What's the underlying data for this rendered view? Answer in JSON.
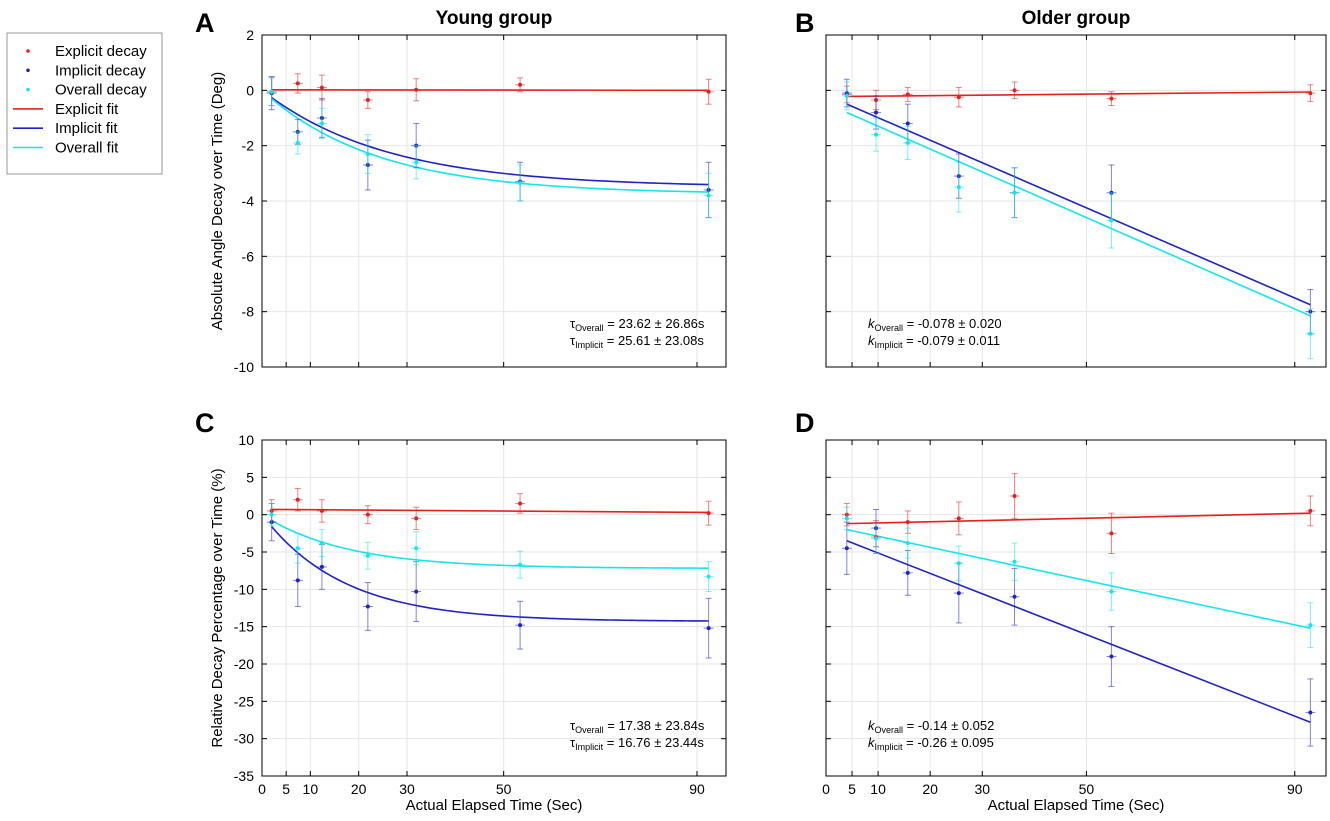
{
  "titles": {
    "young": "Young group",
    "older": "Older group"
  },
  "panel_labels": [
    "A",
    "B",
    "C",
    "D"
  ],
  "xlabel": "Actual Elapsed Time (Sec)",
  "colors": {
    "explicit": "#e8201c",
    "implicit": "#1f23c8",
    "overall": "#14e6ee"
  },
  "legend": [
    {
      "label": "Explicit decay",
      "kind": "dot",
      "series": "explicit"
    },
    {
      "label": "Implicit decay",
      "kind": "dot",
      "series": "implicit"
    },
    {
      "label": "Overall decay",
      "kind": "dot",
      "series": "overall"
    },
    {
      "label": "Explicit fit",
      "kind": "line",
      "series": "explicit"
    },
    {
      "label": "Implicit fit",
      "kind": "line",
      "series": "implicit"
    },
    {
      "label": "Overall fit",
      "kind": "line",
      "series": "overall"
    }
  ],
  "chart_data": [
    {
      "panel": "A",
      "type": "scatter",
      "group": "young",
      "ylabel": "Absolute Angle Decay over Time (Deg)",
      "xlim": [
        0,
        96
      ],
      "ylim": [
        -10,
        2
      ],
      "xticks": [
        0,
        5,
        10,
        20,
        30,
        50,
        90
      ],
      "yticks": [
        -10,
        -8,
        -6,
        -4,
        -2,
        0,
        2
      ],
      "ytick_labels": true,
      "grid": true,
      "series": {
        "explicit": {
          "x": [
            2,
            7.4,
            12.4,
            21.9,
            31.9,
            53.4,
            92.4
          ],
          "y": [
            -0.05,
            0.25,
            0.1,
            -0.35,
            0.02,
            0.2,
            -0.05
          ],
          "err": [
            0.5,
            0.35,
            0.45,
            0.3,
            0.4,
            0.25,
            0.45
          ]
        },
        "implicit": {
          "x": [
            2,
            7.4,
            12.4,
            21.9,
            31.9,
            53.4,
            92.4
          ],
          "y": [
            -0.1,
            -1.5,
            -1.0,
            -2.7,
            -2.0,
            -3.3,
            -3.6
          ],
          "err": [
            0.6,
            0.45,
            0.7,
            0.9,
            0.8,
            0.7,
            1.0
          ]
        },
        "overall": {
          "x": [
            2,
            7.4,
            12.4,
            21.9,
            31.9,
            53.4,
            92.4
          ],
          "y": [
            -0.05,
            -1.9,
            -1.2,
            -2.3,
            -2.6,
            -3.35,
            -3.8
          ],
          "err": [
            0.5,
            0.4,
            0.55,
            0.7,
            0.6,
            0.65,
            0.8
          ]
        }
      },
      "fits": {
        "explicit": {
          "model": "linear",
          "x0": 2,
          "x1": 92.4,
          "y0": 0.02,
          "y1": 0.0
        },
        "implicit": {
          "model": "exp",
          "a": -3.5,
          "tau": 25.61,
          "xs": 2,
          "xe": 92.4
        },
        "overall": {
          "model": "exp",
          "a": -3.75,
          "tau": 23.62,
          "xs": 2,
          "xe": 92.4
        }
      },
      "annotation": [
        {
          "sym": "τ",
          "sym_italic": false,
          "sub": "Overall",
          "text": " = 23.62 ± 26.86s"
        },
        {
          "sym": "τ",
          "sym_italic": false,
          "sub": "Implicit",
          "text": " = 25.61 ± 23.08s"
        }
      ]
    },
    {
      "panel": "B",
      "type": "scatter",
      "group": "older",
      "ylabel": "",
      "xlim": [
        0,
        96
      ],
      "ylim": [
        -10,
        2
      ],
      "xticks": [
        0,
        5,
        10,
        20,
        30,
        50,
        90
      ],
      "yticks": [
        -10,
        -8,
        -6,
        -4,
        -2,
        0,
        2
      ],
      "ytick_labels": false,
      "grid": true,
      "series": {
        "explicit": {
          "x": [
            4,
            9.6,
            15.7,
            25.5,
            36.2,
            54.8,
            93
          ],
          "y": [
            -0.15,
            -0.35,
            -0.15,
            -0.25,
            0.0,
            -0.3,
            -0.1
          ],
          "err": [
            0.3,
            0.35,
            0.25,
            0.35,
            0.3,
            0.25,
            0.3
          ]
        },
        "implicit": {
          "x": [
            4,
            9.6,
            15.7,
            25.5,
            36.2,
            54.8,
            93
          ],
          "y": [
            -0.1,
            -0.8,
            -1.2,
            -3.1,
            -3.7,
            -3.7,
            -8.0
          ],
          "err": [
            0.5,
            0.6,
            0.7,
            0.8,
            0.9,
            1.0,
            0.8
          ]
        },
        "overall": {
          "x": [
            4,
            9.6,
            15.7,
            25.5,
            36.2,
            54.8,
            93
          ],
          "y": [
            -0.2,
            -1.6,
            -1.9,
            -3.5,
            -3.7,
            -4.7,
            -8.8
          ],
          "err": [
            0.5,
            0.6,
            0.6,
            0.9,
            0.9,
            1.0,
            0.9
          ]
        }
      },
      "fits": {
        "explicit": {
          "model": "linear",
          "x0": 4,
          "x1": 93,
          "y0": -0.22,
          "y1": -0.06
        },
        "implicit": {
          "model": "linear",
          "x0": 4,
          "x1": 93,
          "y0": -0.5,
          "y1": -7.75
        },
        "overall": {
          "model": "linear",
          "x0": 4,
          "x1": 93,
          "y0": -0.8,
          "y1": -8.15
        }
      },
      "annotation": [
        {
          "sym": "k",
          "sym_italic": true,
          "sub": "Overall",
          "text": " = -0.078 ± 0.020"
        },
        {
          "sym": "k",
          "sym_italic": true,
          "sub": "Implicit",
          "text": " = -0.079 ± 0.011"
        }
      ]
    },
    {
      "panel": "C",
      "type": "scatter",
      "group": "young",
      "ylabel": "Relative Decay Percentage over Time (%)",
      "xlim": [
        0,
        96
      ],
      "ylim": [
        -35,
        10
      ],
      "xticks": [
        0,
        5,
        10,
        20,
        30,
        50,
        90
      ],
      "yticks": [
        -35,
        -30,
        -25,
        -20,
        -15,
        -10,
        -5,
        0,
        5,
        10
      ],
      "ytick_labels": true,
      "grid": true,
      "series": {
        "explicit": {
          "x": [
            2,
            7.4,
            12.4,
            21.9,
            31.9,
            53.4,
            92.4
          ],
          "y": [
            0.5,
            2.0,
            0.5,
            0.0,
            -0.5,
            1.5,
            0.2
          ],
          "err": [
            1.5,
            1.5,
            1.5,
            1.2,
            1.5,
            1.3,
            1.6
          ]
        },
        "implicit": {
          "x": [
            2,
            7.4,
            12.4,
            21.9,
            31.9,
            53.4,
            92.4
          ],
          "y": [
            -1.0,
            -8.8,
            -7.0,
            -12.3,
            -10.3,
            -14.8,
            -15.2
          ],
          "err": [
            2.5,
            3.5,
            3.0,
            3.2,
            4.0,
            3.2,
            4.0
          ]
        },
        "overall": {
          "x": [
            2,
            7.4,
            12.4,
            21.9,
            31.9,
            53.4,
            92.4
          ],
          "y": [
            0.0,
            -4.5,
            -3.8,
            -5.5,
            -4.5,
            -6.7,
            -8.3
          ],
          "err": [
            1.5,
            2.0,
            1.8,
            1.8,
            2.2,
            1.8,
            2.0
          ]
        }
      },
      "fits": {
        "explicit": {
          "model": "linear",
          "x0": 2,
          "x1": 92.4,
          "y0": 0.7,
          "y1": 0.3
        },
        "implicit": {
          "model": "exp",
          "a": -14.3,
          "tau": 16.76,
          "xs": 2,
          "xe": 92.4
        },
        "overall": {
          "model": "exp",
          "a": -7.2,
          "tau": 17.38,
          "xs": 2,
          "xe": 92.4
        }
      },
      "annotation": [
        {
          "sym": "τ",
          "sym_italic": false,
          "sub": "Overall",
          "text": " = 17.38 ± 23.84s"
        },
        {
          "sym": "τ",
          "sym_italic": false,
          "sub": "Implicit",
          "text": " = 16.76 ± 23.44s"
        }
      ]
    },
    {
      "panel": "D",
      "type": "scatter",
      "group": "older",
      "ylabel": "",
      "xlim": [
        0,
        96
      ],
      "ylim": [
        -35,
        10
      ],
      "xticks": [
        0,
        5,
        10,
        20,
        30,
        50,
        90
      ],
      "yticks": [
        -35,
        -30,
        -25,
        -20,
        -15,
        -10,
        -5,
        0,
        5,
        10
      ],
      "ytick_labels": false,
      "grid": true,
      "series": {
        "explicit": {
          "x": [
            4,
            9.6,
            15.7,
            25.5,
            36.2,
            54.8,
            93
          ],
          "y": [
            0.0,
            -3.0,
            -1.0,
            -0.5,
            2.5,
            -2.5,
            0.5
          ],
          "err": [
            1.5,
            2.2,
            1.5,
            2.2,
            3.0,
            2.7,
            2.0
          ]
        },
        "implicit": {
          "x": [
            4,
            9.6,
            15.7,
            25.5,
            36.2,
            54.8,
            93
          ],
          "y": [
            -4.5,
            -1.8,
            -7.8,
            -10.5,
            -11.0,
            -19.0,
            -26.5
          ],
          "err": [
            3.5,
            2.5,
            3.0,
            4.0,
            3.8,
            4.0,
            4.5
          ]
        },
        "overall": {
          "x": [
            4,
            9.6,
            15.7,
            25.5,
            36.2,
            54.8,
            93
          ],
          "y": [
            -0.5,
            -3.2,
            -3.8,
            -6.5,
            -6.3,
            -10.3,
            -14.8
          ],
          "err": [
            1.5,
            2.0,
            2.0,
            2.3,
            2.5,
            2.5,
            3.0
          ]
        }
      },
      "fits": {
        "explicit": {
          "model": "linear",
          "x0": 4,
          "x1": 93,
          "y0": -1.2,
          "y1": 0.2
        },
        "implicit": {
          "model": "linear",
          "x0": 4,
          "x1": 93,
          "y0": -3.5,
          "y1": -27.8
        },
        "overall": {
          "model": "linear",
          "x0": 4,
          "x1": 93,
          "y0": -2.0,
          "y1": -15.2
        }
      },
      "annotation": [
        {
          "sym": "k",
          "sym_italic": true,
          "sub": "Overall",
          "text": " = -0.14 ± 0.052"
        },
        {
          "sym": "k",
          "sym_italic": true,
          "sub": "Implicit",
          "text": " = -0.26 ± 0.095"
        }
      ]
    }
  ]
}
